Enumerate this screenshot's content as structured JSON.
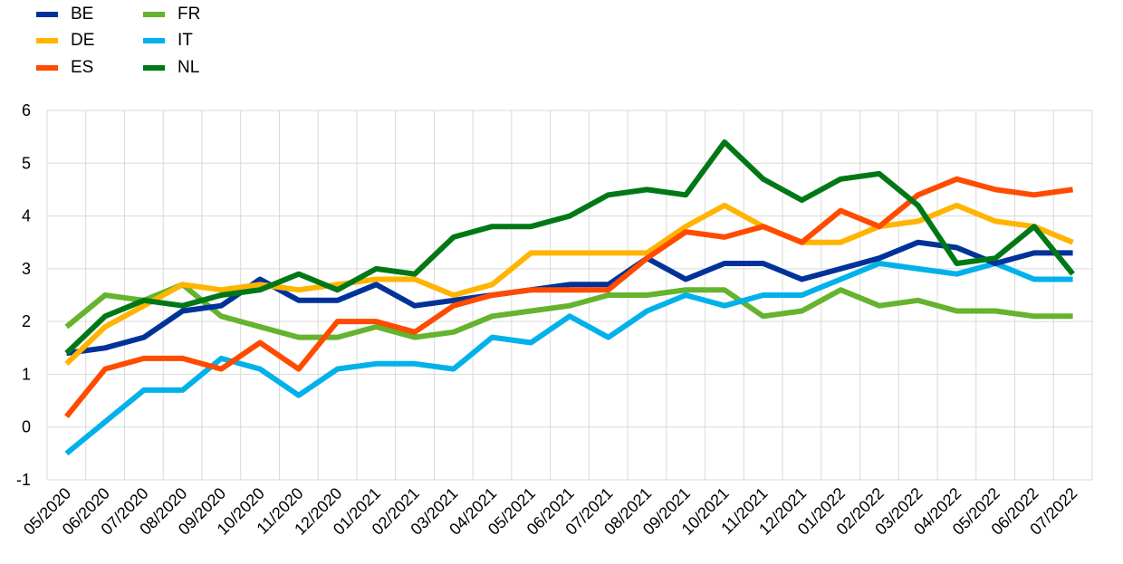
{
  "chart_data": {
    "type": "line",
    "title": "",
    "xlabel": "",
    "ylabel": "",
    "ylim": [
      -1,
      6
    ],
    "yticks": [
      -1,
      0,
      1,
      2,
      3,
      4,
      5,
      6
    ],
    "grid": true,
    "legend_position": "top-left",
    "categories": [
      "05/2020",
      "06/2020",
      "07/2020",
      "08/2020",
      "09/2020",
      "10/2020",
      "11/2020",
      "12/2020",
      "01/2021",
      "02/2021",
      "03/2021",
      "04/2021",
      "05/2021",
      "06/2021",
      "07/2021",
      "08/2021",
      "09/2021",
      "10/2021",
      "11/2021",
      "12/2021",
      "01/2022",
      "02/2022",
      "03/2022",
      "04/2022",
      "05/2022",
      "06/2022",
      "07/2022"
    ],
    "series": [
      {
        "name": "FR",
        "color": "#65b32e",
        "values": [
          1.9,
          2.5,
          2.4,
          2.7,
          2.1,
          1.9,
          1.7,
          1.7,
          1.9,
          1.7,
          1.8,
          2.1,
          2.2,
          2.3,
          2.5,
          2.5,
          2.6,
          2.6,
          2.1,
          2.2,
          2.6,
          2.3,
          2.4,
          2.2,
          2.2,
          2.1,
          2.1
        ]
      },
      {
        "name": "IT",
        "color": "#00b1ea",
        "values": [
          -0.5,
          0.1,
          0.7,
          0.7,
          1.3,
          1.1,
          0.6,
          1.1,
          1.2,
          1.2,
          1.1,
          1.7,
          1.6,
          2.1,
          1.7,
          2.2,
          2.5,
          2.3,
          2.5,
          2.5,
          2.8,
          3.1,
          3.0,
          2.9,
          3.1,
          2.8,
          2.8
        ]
      },
      {
        "name": "BE",
        "color": "#003299",
        "values": [
          1.4,
          1.5,
          1.7,
          2.2,
          2.3,
          2.8,
          2.4,
          2.4,
          2.7,
          2.3,
          2.4,
          2.5,
          2.6,
          2.7,
          2.7,
          3.2,
          2.8,
          3.1,
          3.1,
          2.8,
          3.0,
          3.2,
          3.5,
          3.4,
          3.1,
          3.3,
          3.3
        ]
      },
      {
        "name": "DE",
        "color": "#ffb400",
        "values": [
          1.2,
          1.9,
          2.3,
          2.7,
          2.6,
          2.7,
          2.6,
          2.7,
          2.8,
          2.8,
          2.5,
          2.7,
          3.3,
          3.3,
          3.3,
          3.3,
          3.8,
          4.2,
          3.8,
          3.5,
          3.5,
          3.8,
          3.9,
          4.2,
          3.9,
          3.8,
          3.5
        ]
      },
      {
        "name": "ES",
        "color": "#ff4b00",
        "values": [
          0.2,
          1.1,
          1.3,
          1.3,
          1.1,
          1.6,
          1.1,
          2.0,
          2.0,
          1.8,
          2.3,
          2.5,
          2.6,
          2.6,
          2.6,
          3.2,
          3.7,
          3.6,
          3.8,
          3.5,
          4.1,
          3.8,
          4.4,
          4.7,
          4.5,
          4.4,
          4.5
        ]
      },
      {
        "name": "NL",
        "color": "#007816",
        "values": [
          1.4,
          2.1,
          2.4,
          2.3,
          2.5,
          2.6,
          2.9,
          2.6,
          3.0,
          2.9,
          3.6,
          3.8,
          3.8,
          4.0,
          4.4,
          4.5,
          4.4,
          5.4,
          4.7,
          4.3,
          4.7,
          4.8,
          4.2,
          3.1,
          3.2,
          3.8,
          2.9
        ]
      }
    ]
  },
  "legend": [
    {
      "label": "BE",
      "color": "#003299"
    },
    {
      "label": "DE",
      "color": "#ffb400"
    },
    {
      "label": "ES",
      "color": "#ff4b00"
    },
    {
      "label": "FR",
      "color": "#65b32e"
    },
    {
      "label": "IT",
      "color": "#00b1ea"
    },
    {
      "label": "NL",
      "color": "#007816"
    }
  ]
}
